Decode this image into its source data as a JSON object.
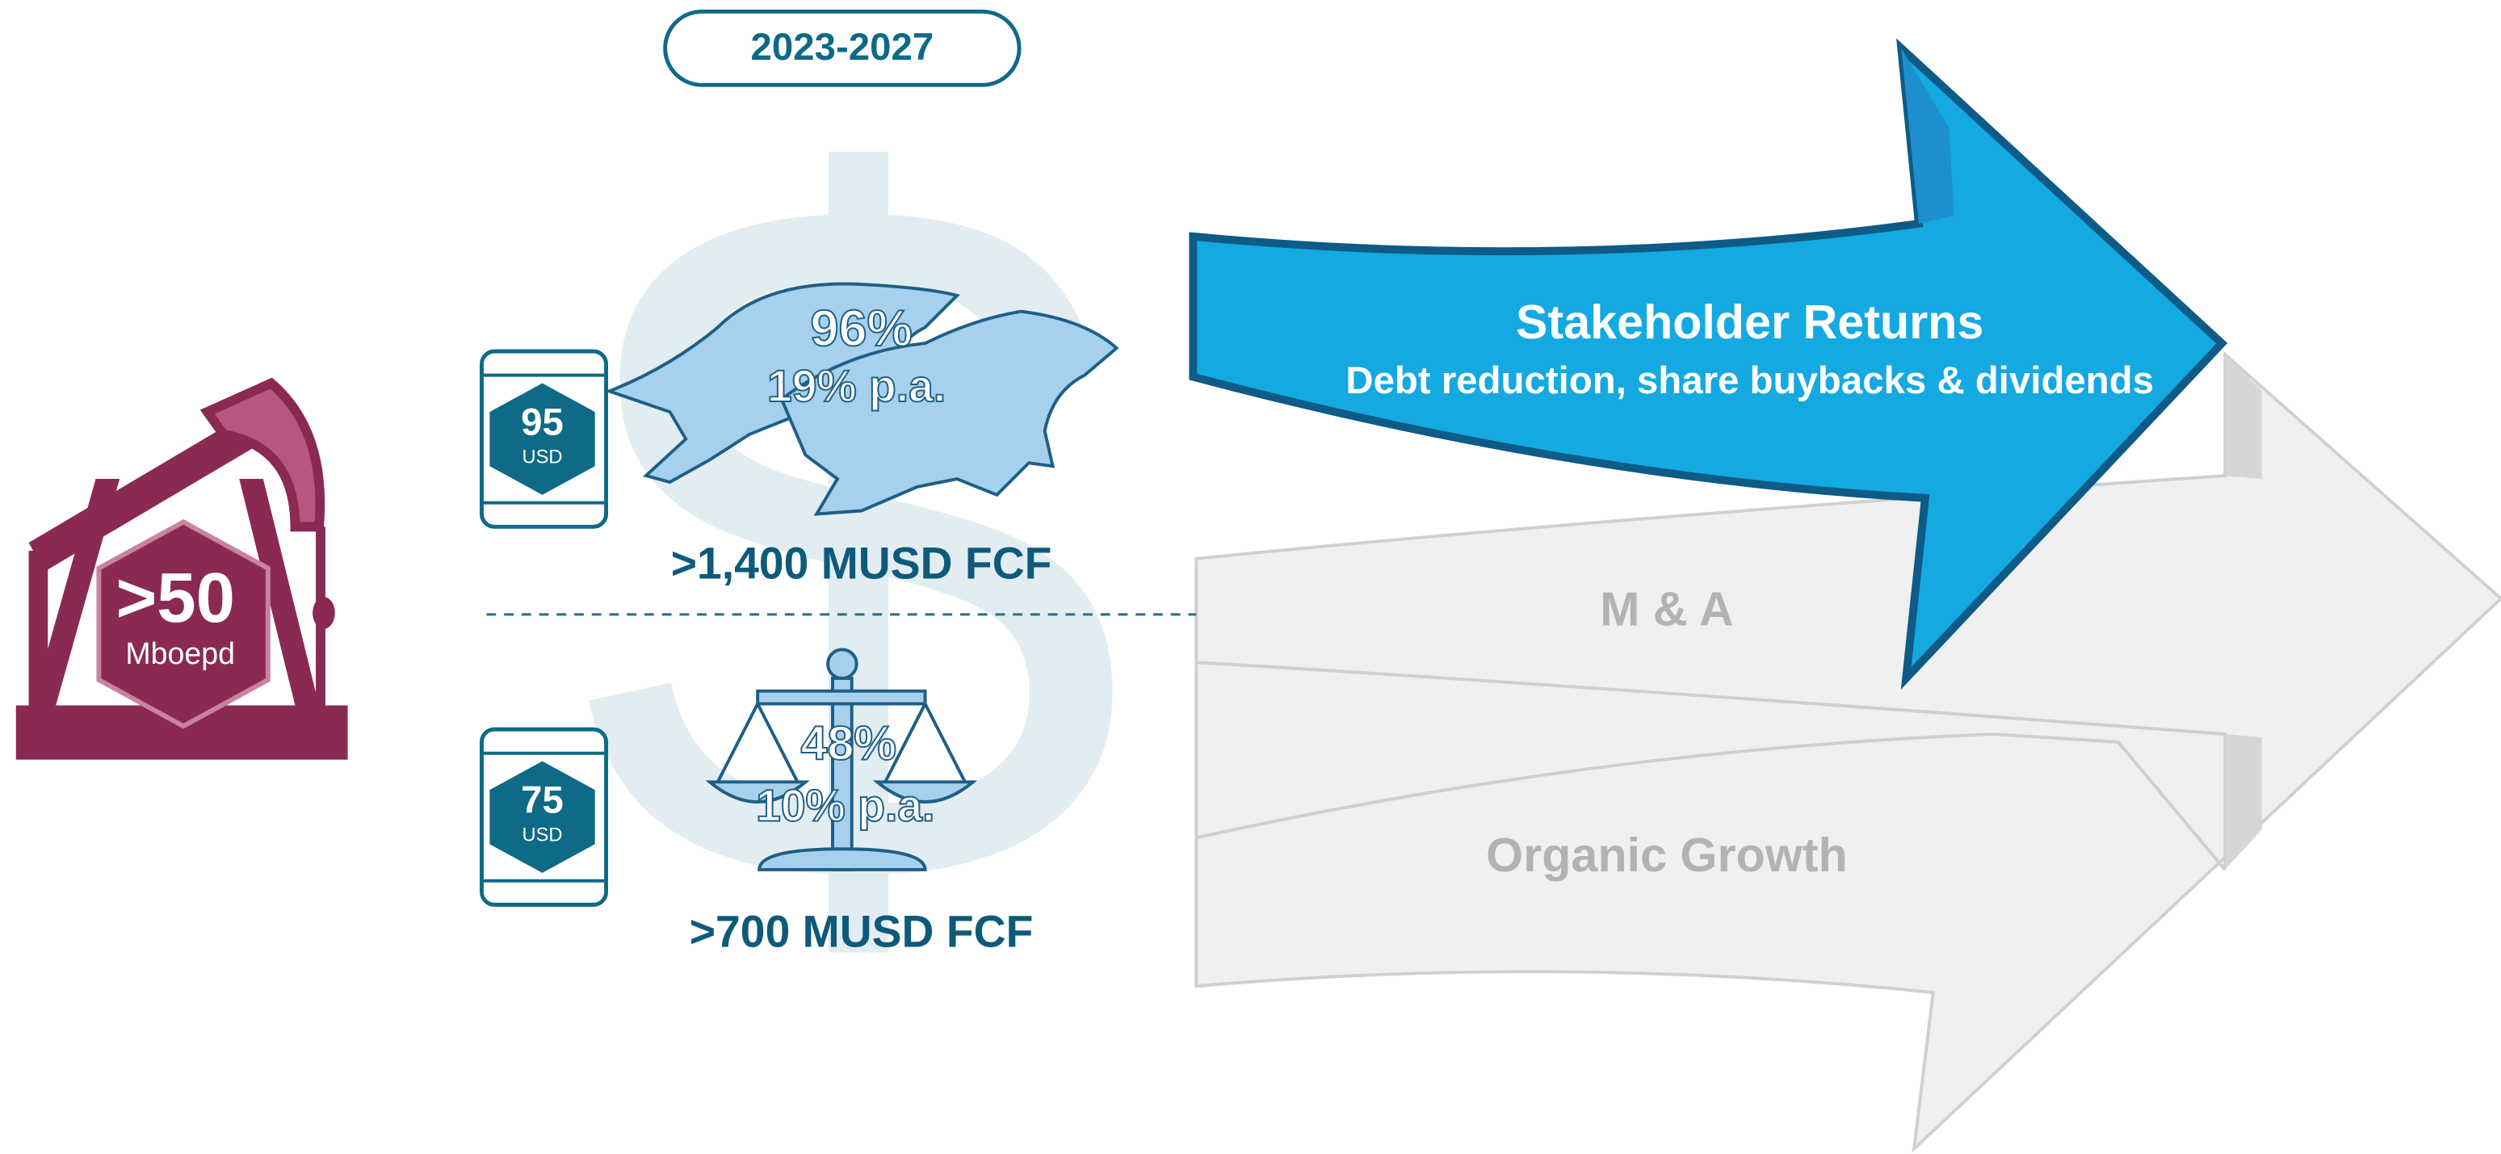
{
  "period": "2023-2027",
  "production": {
    "value": ">50",
    "unit": "Mboepd"
  },
  "scenarios": [
    {
      "oil_price": "95",
      "currency": "USD",
      "total_return": "96%",
      "annual_return": "19% p.a.",
      "fcf": ">1,400 MUSD FCF"
    },
    {
      "oil_price": "75",
      "currency": "USD",
      "total_return": "48%",
      "annual_return": "10% p.a.",
      "fcf": ">700 MUSD FCF"
    }
  ],
  "allocations": [
    {
      "title": "Stakeholder Returns",
      "subtitle": "Debt reduction, share buybacks & dividends"
    },
    {
      "title": "M & A"
    },
    {
      "title": "Organic Growth"
    }
  ]
}
